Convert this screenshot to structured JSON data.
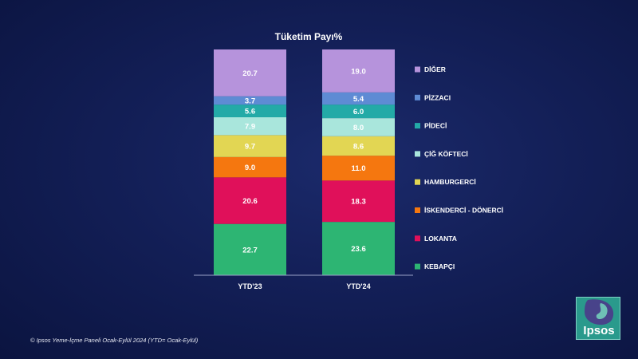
{
  "chart_data": {
    "type": "bar",
    "stacked": true,
    "title": "Tüketim Payı%",
    "categories": [
      "YTD'23",
      "YTD'24"
    ],
    "series": [
      {
        "name": "KEBAPÇI",
        "color": "#2db573",
        "values": [
          22.7,
          23.6
        ]
      },
      {
        "name": "LOKANTA",
        "color": "#e0105a",
        "values": [
          20.6,
          18.3
        ]
      },
      {
        "name": "İSKENDERCİ - DÖNERCİ",
        "color": "#f5770f",
        "values": [
          9.0,
          11.0
        ]
      },
      {
        "name": "HAMBURGERCİ",
        "color": "#e2d653",
        "values": [
          9.7,
          8.6
        ]
      },
      {
        "name": "ÇİĞ KÖFTECİ",
        "color": "#a9e6dc",
        "values": [
          7.9,
          8.0
        ]
      },
      {
        "name": "PİDECİ",
        "color": "#23aaa7",
        "values": [
          5.6,
          6.0
        ]
      },
      {
        "name": "PİZZACI",
        "color": "#5e8bd4",
        "values": [
          3.7,
          5.4
        ]
      },
      {
        "name": "DİĞER",
        "color": "#b693dc",
        "values": [
          20.7,
          19.0
        ]
      }
    ],
    "value_labels": [
      [
        "22.7",
        "20.6",
        "9.0",
        "9.7",
        "7.9",
        "5.6",
        "3.7",
        "20.7"
      ],
      [
        "23.6",
        "18.3",
        "11.0",
        "8.6",
        "8.0",
        "6.0",
        "5.4",
        "19.0"
      ]
    ],
    "legend_order": [
      "DİĞER",
      "PİZZACI",
      "PİDECİ",
      "ÇİĞ KÖFTECİ",
      "HAMBURGERCİ",
      "İSKENDERCİ - DÖNERCİ",
      "LOKANTA",
      "KEBAPÇI"
    ],
    "legend_position": "right",
    "ylim": [
      0,
      99.9
    ],
    "grid": false
  },
  "footnote": "© Ipsos Yeme-İçme Paneli Ocak-Eylül 2024 (YTD= Ocak-Eylül)",
  "logo": {
    "text": "Ipsos",
    "color": "#2a9a8c"
  }
}
